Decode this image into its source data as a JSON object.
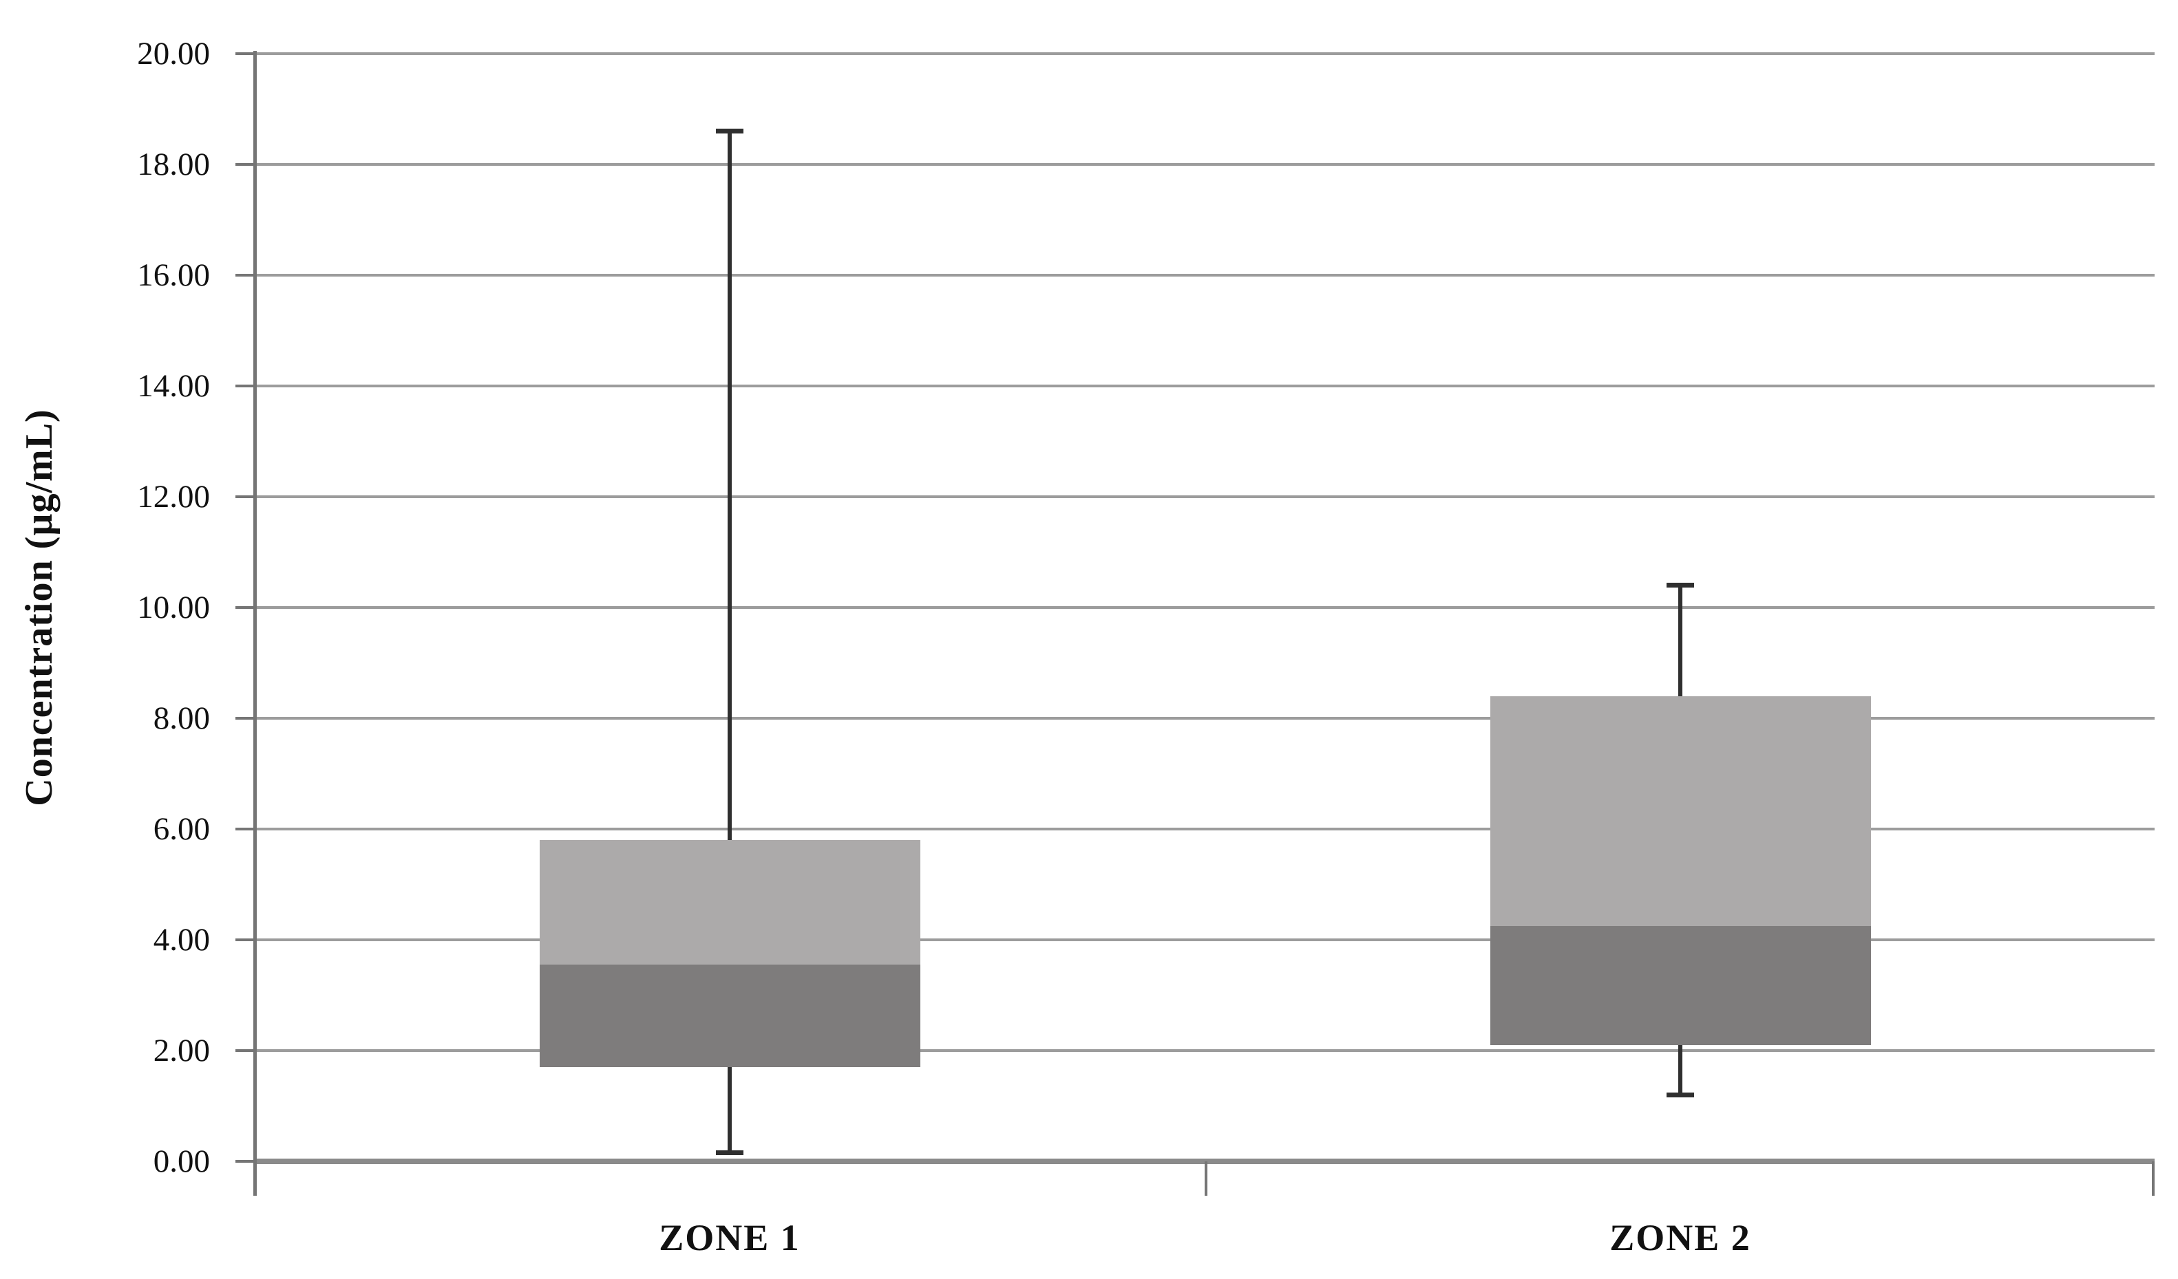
{
  "chart_data": {
    "type": "boxplot",
    "orientation": "vertical",
    "title": "",
    "ylabel": "Concentration (µg/mL)",
    "xlabel": "",
    "ylim": [
      0,
      20
    ],
    "ytick_interval": 2,
    "ytick_labels": [
      "20.00",
      "18.00",
      "16.00",
      "14.00",
      "12.00",
      "10.00",
      "8.00",
      "6.00",
      "4.00",
      "2.00",
      "0.00"
    ],
    "grid": "horizontal-gridlines-on",
    "legend": "none",
    "categories": [
      "ZONE 1",
      "ZONE 2"
    ],
    "series": [
      {
        "category": "ZONE 1",
        "min": 0.15,
        "q1": 1.7,
        "median": 3.55,
        "q3": 5.8,
        "max": 18.6
      },
      {
        "category": "ZONE 2",
        "min": 1.2,
        "q1": 2.1,
        "median": 4.25,
        "q3": 8.4,
        "max": 10.4
      }
    ],
    "colors": {
      "box_upper_segment": "#acaaaa",
      "box_lower_segment": "#7e7c7c",
      "whisker": "#2f2f2f",
      "gridline": "#9c9c9c",
      "axis_line": "#8a8a8a",
      "y_axis_line": "#757575",
      "text": "#111111",
      "background": "#ffffff"
    }
  }
}
